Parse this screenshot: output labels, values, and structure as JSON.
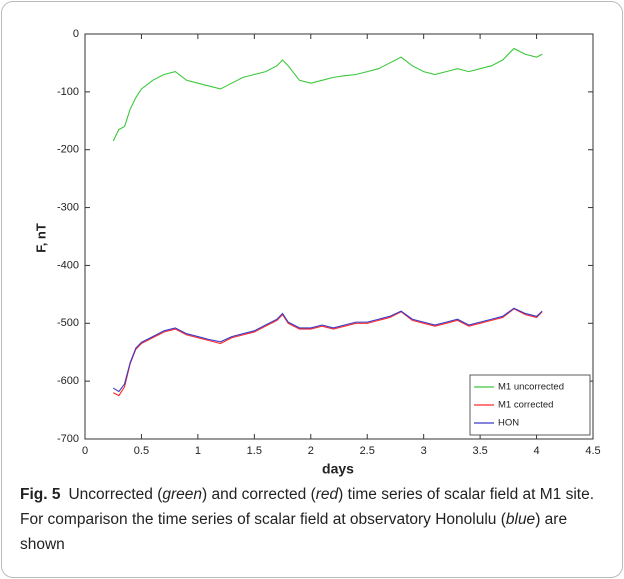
{
  "chart_data": {
    "type": "line",
    "x": [
      0.25,
      0.3,
      0.35,
      0.4,
      0.45,
      0.5,
      0.6,
      0.7,
      0.8,
      0.9,
      1.0,
      1.1,
      1.2,
      1.3,
      1.4,
      1.5,
      1.6,
      1.7,
      1.75,
      1.8,
      1.9,
      2.0,
      2.1,
      2.2,
      2.3,
      2.4,
      2.5,
      2.6,
      2.7,
      2.8,
      2.9,
      3.0,
      3.1,
      3.2,
      3.3,
      3.4,
      3.5,
      3.6,
      3.7,
      3.8,
      3.9,
      4.0,
      4.05
    ],
    "series": [
      {
        "name": "M1 uncorrected",
        "color": "#3cc83c",
        "values": [
          -185,
          -165,
          -160,
          -130,
          -110,
          -95,
          -80,
          -70,
          -65,
          -80,
          -85,
          -90,
          -95,
          -85,
          -75,
          -70,
          -65,
          -55,
          -45,
          -55,
          -80,
          -85,
          -80,
          -75,
          -72,
          -70,
          -65,
          -60,
          -50,
          -40,
          -55,
          -65,
          -70,
          -65,
          -60,
          -65,
          -60,
          -55,
          -45,
          -25,
          -35,
          -40,
          -35
        ]
      },
      {
        "name": "M1 corrected",
        "color": "#ff2a2a",
        "values": [
          -620,
          -625,
          -610,
          -570,
          -545,
          -535,
          -525,
          -515,
          -510,
          -520,
          -525,
          -530,
          -535,
          -525,
          -520,
          -515,
          -505,
          -495,
          -485,
          -500,
          -510,
          -510,
          -505,
          -510,
          -505,
          -500,
          -500,
          -495,
          -490,
          -480,
          -495,
          -500,
          -505,
          -500,
          -495,
          -505,
          -500,
          -495,
          -490,
          -475,
          -485,
          -490,
          -480
        ]
      },
      {
        "name": "HON",
        "color": "#3a3ac8",
        "values": [
          -612,
          -618,
          -605,
          -568,
          -543,
          -533,
          -523,
          -513,
          -508,
          -518,
          -523,
          -528,
          -532,
          -523,
          -518,
          -513,
          -503,
          -493,
          -483,
          -498,
          -508,
          -508,
          -503,
          -508,
          -503,
          -498,
          -498,
          -493,
          -488,
          -479,
          -493,
          -498,
          -503,
          -498,
          -493,
          -503,
          -498,
          -493,
          -488,
          -474,
          -483,
          -488,
          -479
        ]
      }
    ],
    "x_label": "days",
    "y_label": "F, nT",
    "xlim": [
      0,
      4.5
    ],
    "ylim": [
      -700,
      0
    ],
    "xticks": [
      0,
      0.5,
      1,
      1.5,
      2,
      2.5,
      3,
      3.5,
      4,
      4.5
    ],
    "yticks": [
      -700,
      -600,
      -500,
      -400,
      -300,
      -200,
      -100,
      0
    ],
    "legend": "lower right"
  },
  "caption": {
    "label": "Fig. 5",
    "parts": [
      "Uncorrected (",
      "green",
      ") and corrected (",
      "red",
      ") time series of scalar field at M1 site. For comparison the time series of scalar field at observatory Honolulu (",
      "blue",
      ") are shown"
    ]
  }
}
